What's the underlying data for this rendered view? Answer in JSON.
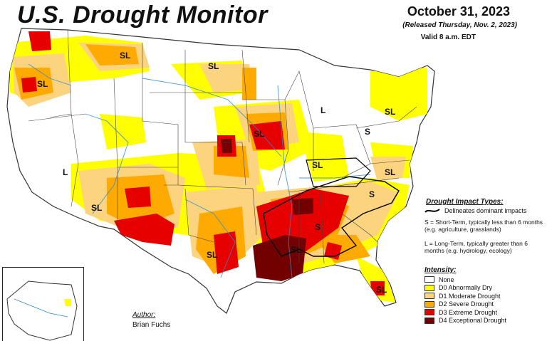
{
  "header": {
    "title": "U.S. Drought Monitor",
    "date": "October 31, 2023",
    "released": "(Released Thursday, Nov. 2, 2023)",
    "valid": "Valid 8 a.m. EDT"
  },
  "map_labels": {
    "sl_pnw": "SL",
    "sl_mt": "SL",
    "sl_nd": "SL",
    "sl_ia": "SL",
    "l_mi": "L",
    "sl_ny": "SL",
    "s_pa": "S",
    "l_ca": "L",
    "sl_az": "SL",
    "sl_il": "SL",
    "s_va": "S",
    "sl_ky": "SL",
    "s_ga": "S",
    "sl_tx": "SL",
    "sl_la": "SL",
    "sl_fl": "SL"
  },
  "legend": {
    "impact_heading": "Drought Impact Types:",
    "delineates": "Delineates dominant impacts",
    "short_term": "S = Short-Term, typically less than 6 months (e.g. agriculture, grasslands)",
    "long_term": "L = Long-Term, typically greater than 6 months (e.g. hydrology, ecology)",
    "intensity_heading": "Intensity:",
    "categories": [
      {
        "label": "None",
        "color": "#ffffff"
      },
      {
        "label": "D0 Abnormally Dry",
        "color": "#ffff00"
      },
      {
        "label": "D1 Moderate Drought",
        "color": "#fcd37f"
      },
      {
        "label": "D2 Severe Drought",
        "color": "#ffaa00"
      },
      {
        "label": "D3 Extreme Drought",
        "color": "#e60000"
      },
      {
        "label": "D4 Exceptional Drought",
        "color": "#730000"
      }
    ]
  },
  "author": {
    "label": "Author:",
    "name": "Brian Fuchs"
  }
}
